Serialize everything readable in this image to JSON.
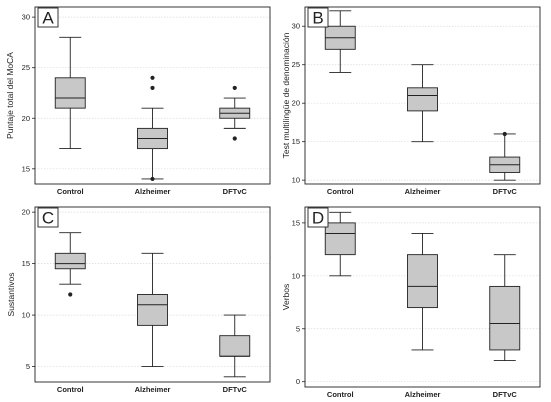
{
  "chart_data": [
    {
      "type": "box",
      "panel_label": "A",
      "ylabel": "Puntaje total del MoCA",
      "categories": [
        "Control",
        "Alzheimer",
        "DFTvC"
      ],
      "yticks": [
        15,
        20,
        25,
        30
      ],
      "ylim": [
        13.5,
        31
      ],
      "grid": true,
      "boxes": [
        {
          "category": "Control",
          "min": 17,
          "q1": 21,
          "median": 22,
          "q3": 24,
          "max": 28,
          "outliers": []
        },
        {
          "category": "Alzheimer",
          "min": 14,
          "q1": 17,
          "median": 18,
          "q3": 19,
          "max": 21,
          "outliers": [
            14,
            23,
            24
          ]
        },
        {
          "category": "DFTvC",
          "min": 19,
          "q1": 20,
          "median": 20.5,
          "q3": 21,
          "max": 22,
          "outliers": [
            18,
            23
          ]
        }
      ]
    },
    {
      "type": "box",
      "panel_label": "B",
      "ylabel": "Test multilingüe de denominación",
      "categories": [
        "Control",
        "Alzheimer",
        "DFTvC"
      ],
      "yticks": [
        10,
        15,
        20,
        25,
        30
      ],
      "ylim": [
        9.5,
        32.5
      ],
      "grid": true,
      "boxes": [
        {
          "category": "Control",
          "min": 24,
          "q1": 27,
          "median": 28.5,
          "q3": 30,
          "max": 32,
          "outliers": []
        },
        {
          "category": "Alzheimer",
          "min": 15,
          "q1": 19,
          "median": 21,
          "q3": 22,
          "max": 25,
          "outliers": []
        },
        {
          "category": "DFTvC",
          "min": 10,
          "q1": 11,
          "median": 12,
          "q3": 13,
          "max": 16,
          "outliers": [
            16
          ]
        }
      ]
    },
    {
      "type": "box",
      "panel_label": "C",
      "ylabel": "Sustantivos",
      "categories": [
        "Control",
        "Alzheimer",
        "DFTvC"
      ],
      "yticks": [
        5,
        10,
        15,
        20
      ],
      "ylim": [
        3.5,
        20.5
      ],
      "grid": true,
      "boxes": [
        {
          "category": "Control",
          "min": 13,
          "q1": 14.5,
          "median": 15,
          "q3": 16,
          "max": 18,
          "outliers": [
            12
          ]
        },
        {
          "category": "Alzheimer",
          "min": 5,
          "q1": 9,
          "median": 11,
          "q3": 12,
          "max": 16,
          "outliers": []
        },
        {
          "category": "DFTvC",
          "min": 4,
          "q1": 6,
          "median": 6,
          "q3": 8,
          "max": 10,
          "outliers": []
        }
      ]
    },
    {
      "type": "box",
      "panel_label": "D",
      "ylabel": "Verbos",
      "categories": [
        "Control",
        "Alzheimer",
        "DFTvC"
      ],
      "yticks": [
        0,
        5,
        10,
        15
      ],
      "ylim": [
        -0.5,
        16.5
      ],
      "grid": true,
      "boxes": [
        {
          "category": "Control",
          "min": 10,
          "q1": 12,
          "median": 14,
          "q3": 15,
          "max": 16,
          "outliers": []
        },
        {
          "category": "Alzheimer",
          "min": 3,
          "q1": 7,
          "median": 9,
          "q3": 12,
          "max": 14,
          "outliers": []
        },
        {
          "category": "DFTvC",
          "min": 2,
          "q1": 3,
          "median": 5.5,
          "q3": 9,
          "max": 12,
          "outliers": []
        }
      ]
    }
  ],
  "colors": {
    "box_fill": "#c8c8c8",
    "stroke": "#222222",
    "grid": "#d9d9d9"
  }
}
